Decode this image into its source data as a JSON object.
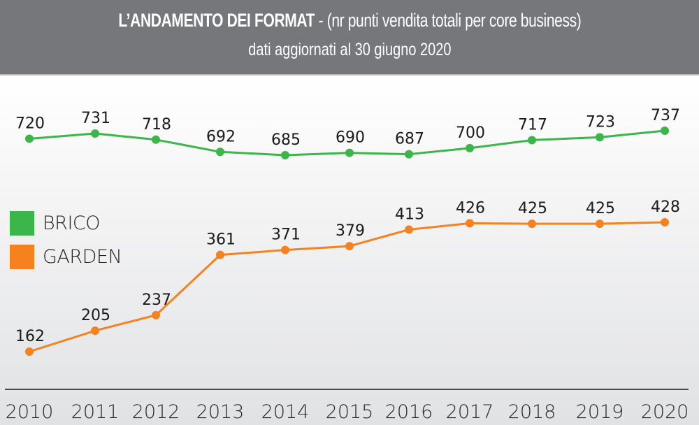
{
  "header": {
    "title_main": "L’ANDAMENTO DEI FORMAT",
    "title_rest": " - (nr punti vendita totali per core business)",
    "subtitle": "dati aggiornati al 30 giugno 2020"
  },
  "colors": {
    "brico": "#3cb54a",
    "garden": "#f5821f",
    "header_bg": "#76777b"
  },
  "chart_data": {
    "type": "line",
    "title": "L’ANDAMENTO DEI FORMAT - (nr punti vendita totali per core business)",
    "subtitle": "dati aggiornati al 30 giugno 2020",
    "xlabel": "",
    "ylabel": "",
    "grid": false,
    "legend_position": "left",
    "x": [
      "2010",
      "2011",
      "2012",
      "2013",
      "2014",
      "2015",
      "2016",
      "2017",
      "2018",
      "2019",
      "2020"
    ],
    "series": [
      {
        "name": "BRICO",
        "color": "#3cb54a",
        "values": [
          720,
          731,
          718,
          692,
          685,
          690,
          687,
          700,
          717,
          723,
          737
        ]
      },
      {
        "name": "GARDEN",
        "color": "#f5821f",
        "values": [
          162,
          205,
          237,
          361,
          371,
          379,
          413,
          426,
          425,
          425,
          428
        ]
      }
    ]
  }
}
